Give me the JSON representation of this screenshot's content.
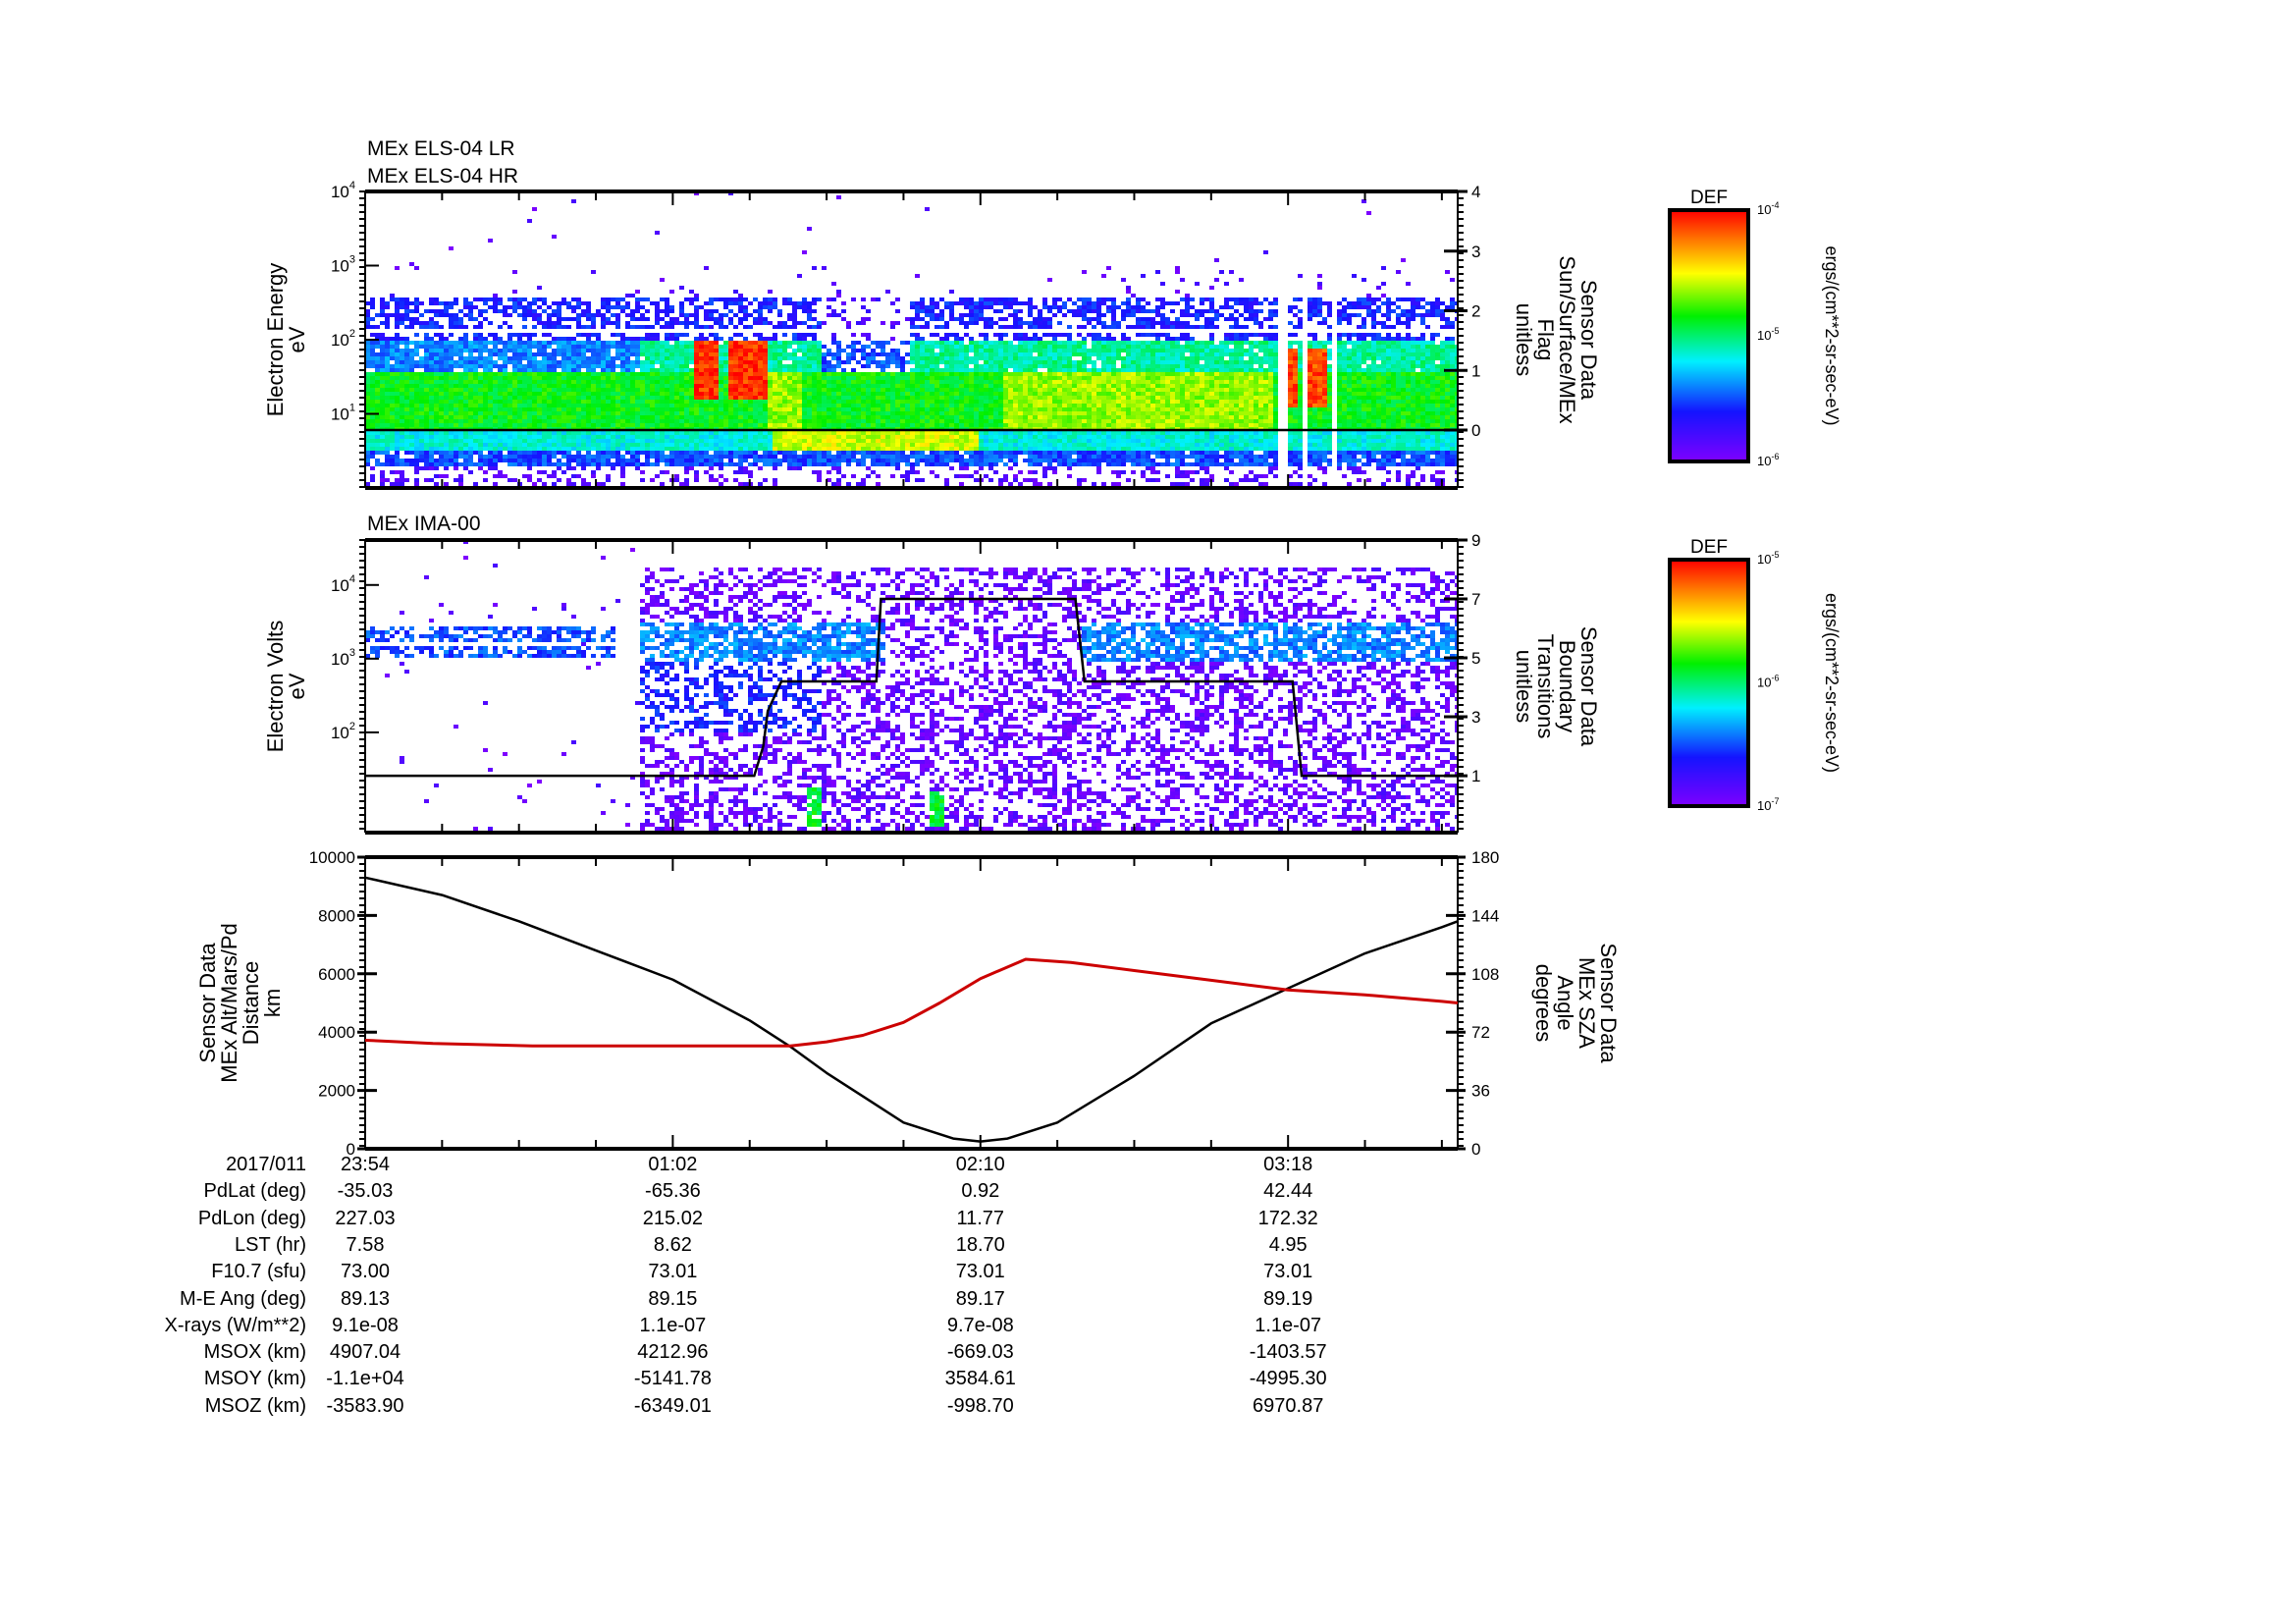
{
  "panels": [
    {
      "titles": [
        "MEx ELS-04 LR",
        "MEx ELS-04 HR"
      ],
      "ylabel": [
        "Electron Energy",
        "eV"
      ],
      "y2label": [
        "Sensor Data",
        "Sun/Surface/MEx",
        "Flag",
        "unitless"
      ],
      "colorbar": {
        "title": "DEF",
        "base": "10",
        "exponents": [
          "-4",
          "-5",
          "-6"
        ],
        "units": "ergs/(cm**2-sr-sec-eV)"
      }
    },
    {
      "titles": [
        "MEx IMA-00"
      ],
      "ylabel": [
        "Electron Volts",
        "eV"
      ],
      "y2label": [
        "Sensor Data",
        "Boundary",
        "Transitions",
        "unitless"
      ],
      "colorbar": {
        "title": "DEF",
        "base": "10",
        "exponents": [
          "-5",
          "-6",
          "-7"
        ],
        "units": "ergs/(cm**2-sr-sec-eV)"
      }
    },
    {
      "ylabel": [
        "Sensor Data",
        "MEx Alt/Mars/Pd",
        "Distance",
        "km"
      ],
      "y2label": [
        "Sensor Data",
        "MEx SZA",
        "Angle",
        "degrees"
      ]
    }
  ],
  "chart_data": [
    {
      "type": "heatmap",
      "title": "MEx ELS-04 LR / MEx ELS-04 HR",
      "x_minutes_range": [
        0,
        241.5
      ],
      "ylog_range": [
        0,
        4
      ],
      "y_tick_base": "10",
      "y_tick_exponents": [
        "4",
        "3",
        "2",
        "1"
      ],
      "y_tick_values": [
        4,
        3,
        2,
        1
      ],
      "y2_range": [
        -0.97,
        4
      ],
      "y2_ticks": [
        "4",
        "3",
        "2",
        "1",
        "0"
      ],
      "y2_tick_values": [
        4,
        3,
        2,
        1,
        0
      ],
      "flag_series": {
        "t": [
          0,
          241.5
        ],
        "v": [
          0,
          0
        ],
        "color": "#000000"
      }
    },
    {
      "type": "heatmap",
      "title": "MEx IMA-00",
      "x_minutes_range": [
        0,
        241.5
      ],
      "ylog_range": [
        0.64,
        4.61
      ],
      "y_tick_base": "10",
      "y_tick_exponents": [
        "4",
        "3",
        "2"
      ],
      "y_tick_values": [
        4,
        3,
        2
      ],
      "y2_range": [
        -0.93,
        9
      ],
      "y2_ticks": [
        "9",
        "7",
        "5",
        "3",
        "1"
      ],
      "y2_tick_values": [
        9,
        7,
        5,
        3,
        1
      ],
      "boundary_series": {
        "t": [
          0,
          86,
          88,
          89,
          92,
          113,
          114,
          157,
          159,
          205,
          207,
          241.5
        ],
        "v": [
          1,
          1,
          2,
          3.2,
          4.2,
          4.2,
          7,
          7,
          4.2,
          4.2,
          1,
          1
        ],
        "color": "#000000"
      }
    },
    {
      "type": "line",
      "x_minutes_range": [
        0,
        241.5
      ],
      "ylim": [
        0,
        10000
      ],
      "y2lim": [
        0,
        180
      ],
      "y_ticks": [
        "10000",
        "8000",
        "6000",
        "4000",
        "2000",
        "0"
      ],
      "y_tick_values": [
        10000,
        8000,
        6000,
        4000,
        2000,
        0
      ],
      "y2_ticks": [
        "180",
        "144",
        "108",
        "72",
        "36",
        "0"
      ],
      "y2_tick_values": [
        180,
        144,
        108,
        72,
        36,
        0
      ],
      "series": [
        {
          "name": "MEx Alt/Mars/Pd Distance (km)",
          "axis": "left",
          "color": "#000000",
          "t": [
            0,
            17,
            34,
            51,
            68,
            85,
            94,
            102,
            119,
            130,
            136,
            142,
            153,
            170,
            187,
            204,
            221,
            238,
            241.5
          ],
          "v": [
            9300,
            8700,
            7800,
            6800,
            5800,
            4400,
            3500,
            2600,
            900,
            350,
            250,
            350,
            900,
            2500,
            4300,
            5500,
            6700,
            7600,
            7800
          ]
        },
        {
          "name": "MEx SZA Angle (degrees)",
          "axis": "right",
          "color": "#cc0000",
          "t": [
            0,
            15,
            37,
            94,
            102,
            110,
            119,
            127,
            136,
            146,
            156,
            170,
            187,
            204,
            221,
            238,
            241.5
          ],
          "v": [
            67,
            65,
            63.5,
            63.5,
            66,
            70,
            78,
            90,
            105,
            117,
            115,
            110,
            104,
            98,
            95,
            91,
            90
          ]
        }
      ]
    }
  ],
  "table": {
    "rows": [
      {
        "label": "2017/011",
        "values": [
          "23:54",
          "01:02",
          "02:10",
          "03:18"
        ]
      },
      {
        "label": "PdLat (deg)",
        "values": [
          "-35.03",
          "-65.36",
          "0.92",
          "42.44"
        ]
      },
      {
        "label": "PdLon (deg)",
        "values": [
          "227.03",
          "215.02",
          "11.77",
          "172.32"
        ]
      },
      {
        "label": "LST (hr)",
        "values": [
          "7.58",
          "8.62",
          "18.70",
          "4.95"
        ]
      },
      {
        "label": "F10.7 (sfu)",
        "values": [
          "73.00",
          "73.01",
          "73.01",
          "73.01"
        ]
      },
      {
        "label": "M-E Ang (deg)",
        "values": [
          "89.13",
          "89.15",
          "89.17",
          "89.19"
        ]
      },
      {
        "label": "X-rays (W/m**2)",
        "values": [
          "9.1e-08",
          "1.1e-07",
          "9.7e-08",
          "1.1e-07"
        ]
      },
      {
        "label": "MSOX (km)",
        "values": [
          "4907.04",
          "4212.96",
          "-669.03",
          "-1403.57"
        ]
      },
      {
        "label": "MSOY (km)",
        "values": [
          "-1.1e+04",
          "-5141.78",
          "3584.61",
          "-4995.30"
        ]
      },
      {
        "label": "MSOZ (km)",
        "values": [
          "-3583.90",
          "-6349.01",
          "-998.70",
          "6970.87"
        ]
      }
    ],
    "tick_minutes": [
      0,
      68,
      136,
      204
    ]
  },
  "colors": {
    "sza": "#cc0000",
    "axis": "#000000"
  }
}
